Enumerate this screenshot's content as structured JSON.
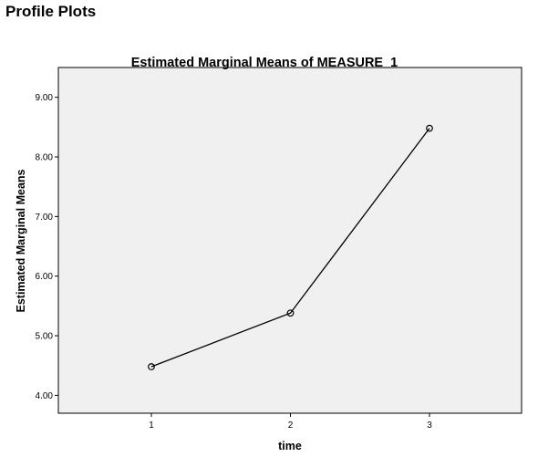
{
  "page": {
    "heading": "Profile Plots"
  },
  "chart_data": {
    "type": "line",
    "title": "Estimated Marginal Means of MEASURE_1",
    "xlabel": "time",
    "ylabel": "Estimated Marginal Means",
    "categories": [
      "1",
      "2",
      "3"
    ],
    "series": [
      {
        "values": [
          4.48,
          5.38,
          8.48
        ]
      }
    ],
    "y_ticks": [
      "4.00",
      "5.00",
      "6.00",
      "7.00",
      "8.00",
      "9.00"
    ],
    "ylim": [
      3.7,
      9.5
    ],
    "grid": false,
    "marker": "open-circle",
    "colors": {
      "plot_background": "#f0f0f0",
      "line": "#000000",
      "frame": "#000000"
    }
  }
}
